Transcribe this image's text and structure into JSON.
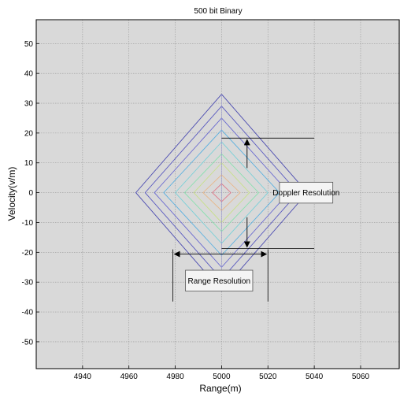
{
  "chart_data": {
    "type": "line",
    "title": "500 bit Binary",
    "xlabel": "Range(m)",
    "ylabel": "Velocity(v/m)",
    "xlim": [
      4920,
      5077
    ],
    "ylim": [
      -59,
      58
    ],
    "xticks": [
      4940,
      4960,
      4980,
      5000,
      5020,
      5040,
      5060
    ],
    "yticks": [
      50,
      40,
      30,
      20,
      10,
      0,
      -10,
      -20,
      -30,
      -40,
      -50
    ],
    "grid": true,
    "background_color": "#d9d9d9",
    "center": {
      "x": 5000,
      "y": 0
    },
    "series": [
      {
        "half_width": 37,
        "half_height": 33,
        "color": "#4a4ab0"
      },
      {
        "half_width": 33,
        "half_height": 29,
        "color": "#5a5ac0"
      },
      {
        "half_width": 29,
        "half_height": 25,
        "color": "#6a6ad0"
      },
      {
        "half_width": 25,
        "half_height": 21,
        "color": "#5ab0e0"
      },
      {
        "half_width": 20,
        "half_height": 17,
        "color": "#7ad0d8"
      },
      {
        "half_width": 16,
        "half_height": 13,
        "color": "#8ae0b0"
      },
      {
        "half_width": 12,
        "half_height": 10,
        "color": "#c8e08a"
      },
      {
        "half_width": 8,
        "half_height": 6,
        "color": "#e8b88a"
      },
      {
        "half_width": 4,
        "half_height": 3,
        "color": "#e07a8a"
      }
    ],
    "annotations": {
      "doppler_label": "Doppler Resolution",
      "range_label": "Range Resolution",
      "doppler_upper_y": 18.3,
      "doppler_lower_y": -18.7,
      "doppler_x_from": 5000,
      "doppler_x_to": 5040,
      "doppler_arrow_x": 5011,
      "doppler_box": {
        "x_from": 5025,
        "x_to": 5048,
        "y_from": -3.5,
        "y_to": 3.5
      },
      "range_left_x": 4979,
      "range_right_x": 5020,
      "range_arrow_y": -20.6,
      "range_line_y_bottom": -36.5,
      "range_box": {
        "x_from": 4979,
        "x_to": 5008,
        "y_from": -33,
        "y_to": -26
      }
    }
  }
}
